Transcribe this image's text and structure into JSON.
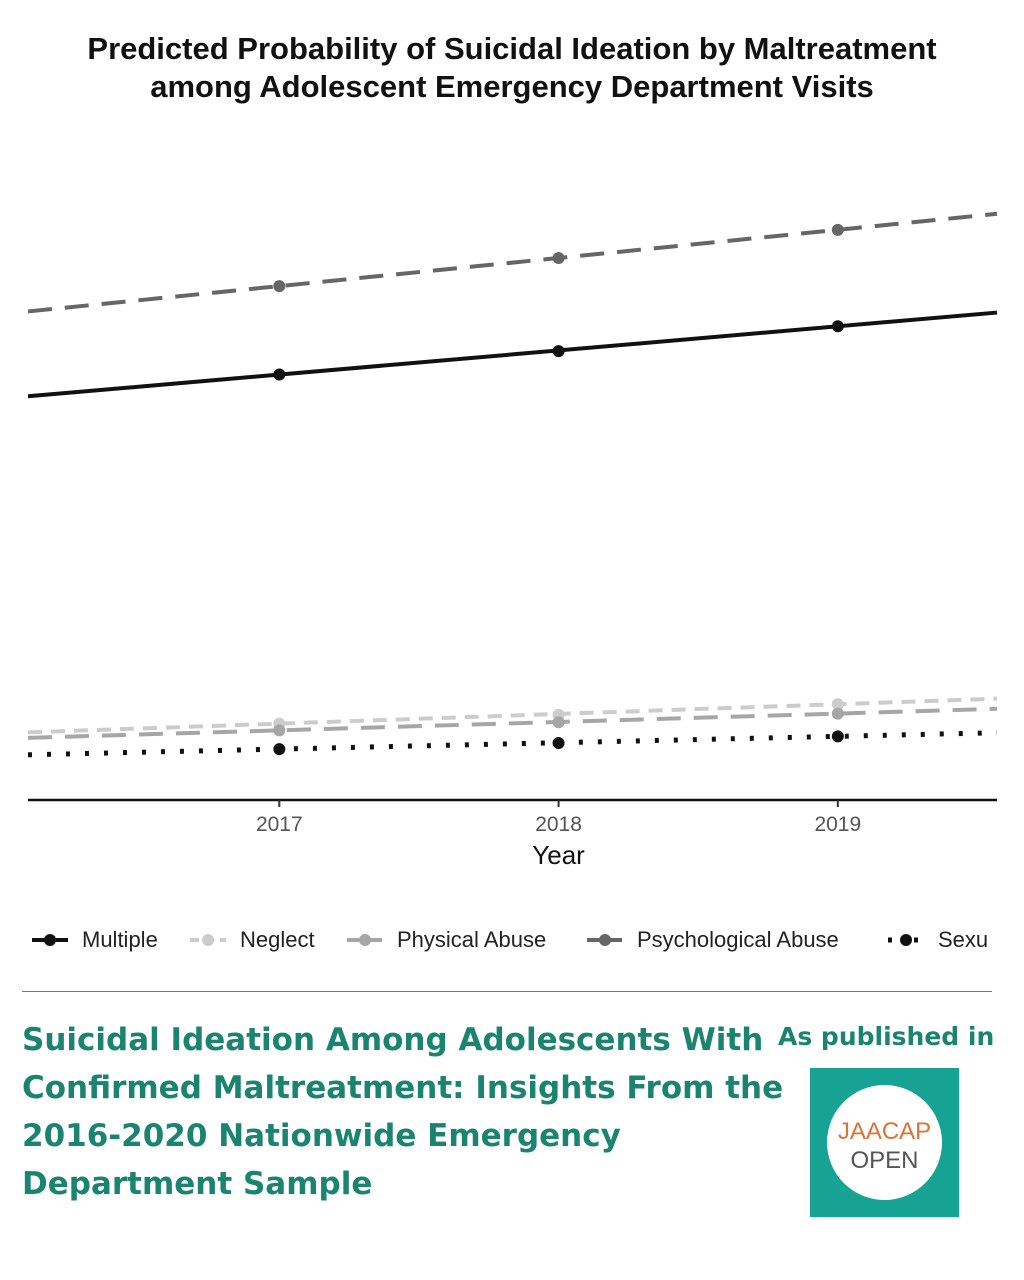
{
  "chart_data": {
    "type": "line",
    "title_lines": [
      "Predicted Probability of Suicidal Ideation by Maltreatment",
      "among Adolescent Emergency Department Visits"
    ],
    "xlabel": "Year",
    "ylabel": "",
    "x": [
      2017,
      2018,
      2019
    ],
    "xlim": [
      2016.1,
      2019.57
    ],
    "ylim": [
      0,
      100
    ],
    "x_ticks": [
      "2017",
      "2018",
      "2019"
    ],
    "grid": false,
    "y_axis_shown": false,
    "legend_position": "bottom",
    "series": [
      {
        "name": "Multiple",
        "values": [
          63.5,
          67.0,
          70.7
        ],
        "style": "solid",
        "color": "#111111"
      },
      {
        "name": "Neglect",
        "values": [
          11.4,
          12.7,
          14.3
        ],
        "style": "dashed-short",
        "color": "#cccccc"
      },
      {
        "name": "Physical Abuse",
        "values": [
          10.4,
          11.6,
          12.9
        ],
        "style": "dashed-long",
        "color": "#a6a6a6"
      },
      {
        "name": "Psychological Abuse",
        "values": [
          76.7,
          80.9,
          85.1
        ],
        "style": "dashed-long",
        "color": "#666666"
      },
      {
        "name": "Sexu",
        "values": [
          7.6,
          8.5,
          9.5
        ],
        "style": "dotted",
        "color": "#111111"
      }
    ]
  },
  "footer": {
    "paper_title_lines": [
      "Suicidal Ideation Among Adolescents With",
      "Confirmed Maltreatment: Insights From the",
      "2016-2020 Nationwide Emergency",
      "Department Sample"
    ],
    "published_label": "As published in",
    "logo_top": "JAACAP",
    "logo_bottom": "OPEN",
    "brand_color": "#1a8470",
    "logo_bg": "#16a393",
    "logo_accent": "#d8733a"
  }
}
